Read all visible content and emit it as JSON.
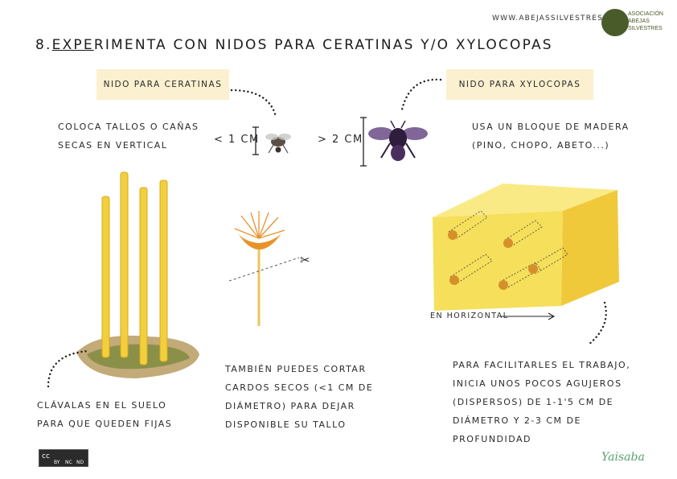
{
  "header": {
    "site": "WWW.ABEJASSILVESTRES.ES",
    "logo_lines": [
      "ASOCIACIÓN",
      "ABEJAS",
      "SILVESTRES"
    ]
  },
  "title": {
    "prefix": "8.",
    "underlined": "EXPE",
    "rest": "RIMENTA CON NIDOS PARA CERATINAS Y/O XYLOCOPAS"
  },
  "labels": {
    "ceratinas": "NIDO PARA CERATINAS",
    "xylocopas": "NIDO PARA XYLOCOPAS"
  },
  "ceratinas_text": [
    "COLOCA TALLOS O CAÑAS",
    "SECAS EN VERTICAL"
  ],
  "xylocopas_text": [
    "USA UN BLOQUE DE MADERA",
    "(PINO, CHOPO, ABETO...)"
  ],
  "measure_small": "< 1 CM",
  "measure_large": "> 2 CM",
  "stems_text": [
    "CLÁVALAS EN EL SUELO",
    "PARA QUE QUEDEN FIJAS"
  ],
  "thistle_text": [
    "TAMBIÉN PUEDES CORTAR",
    "CARDOS SECOS (<1 CM DE",
    "DIÁMETRO) PARA DEJAR",
    "DISPONIBLE SU TALLO"
  ],
  "block_text": [
    "PARA FACILITARLES EL TRABAJO,",
    "INICIA UNOS POCOS AGUJEROS",
    "(DISPERSOS) DE 1-1'5 CM DE",
    "DIÁMETRO Y 2-3 CM DE",
    "PROFUNDIDAD"
  ],
  "horizontal_label": "EN HORIZONTAL",
  "signature": "Yaisaba",
  "license": {
    "cc": "cc",
    "badges": [
      "BY",
      "NC",
      "ND"
    ]
  },
  "colors": {
    "label_bg": "#fbf0cf",
    "stem_yellow": "#f2cf3c",
    "wood_yellow": "#f6df5a",
    "hole_orange": "#d6902a",
    "bee_purple": "#4a2f5e",
    "logo_green": "#4a5b2a",
    "signature_green": "#58a36a"
  }
}
